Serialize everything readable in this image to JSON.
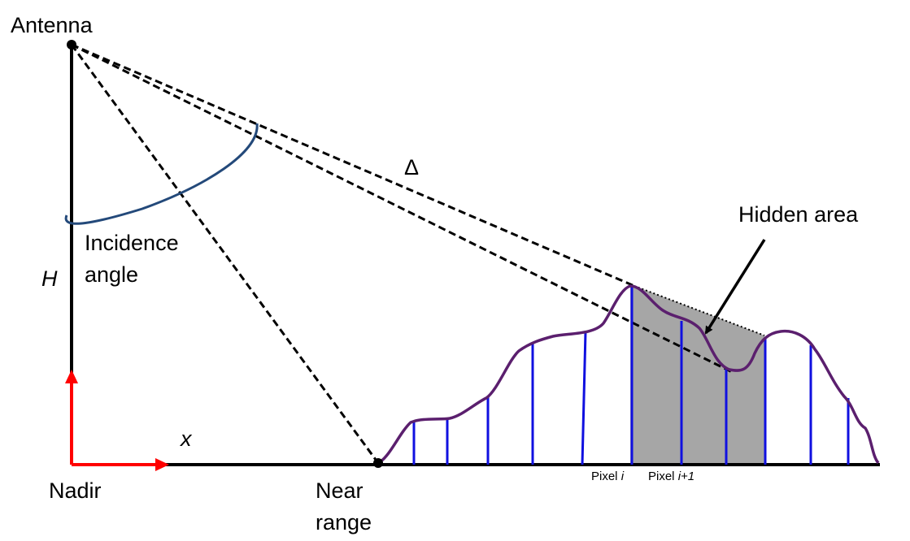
{
  "labels": {
    "antenna": "Antenna",
    "delta": "Δ",
    "hidden_area": "Hidden area",
    "incidence_line1": "Incidence",
    "incidence_line2": "angle",
    "height": "H",
    "x_axis": "x",
    "nadir": "Nadir",
    "near_range_line1": "Near",
    "near_range_line2": "range",
    "pixel_i_prefix": "Pixel ",
    "pixel_i_index": "i",
    "pixel_i1_prefix": "Pixel ",
    "pixel_i1_index": "i+1"
  },
  "colors": {
    "terrain": "#5b1f6e",
    "pixel_lines": "#1010e0",
    "hidden_fill": "#a6a6a6",
    "arc": "#23497a",
    "axis_arrows": "#ff0000",
    "lines": "#000000"
  }
}
